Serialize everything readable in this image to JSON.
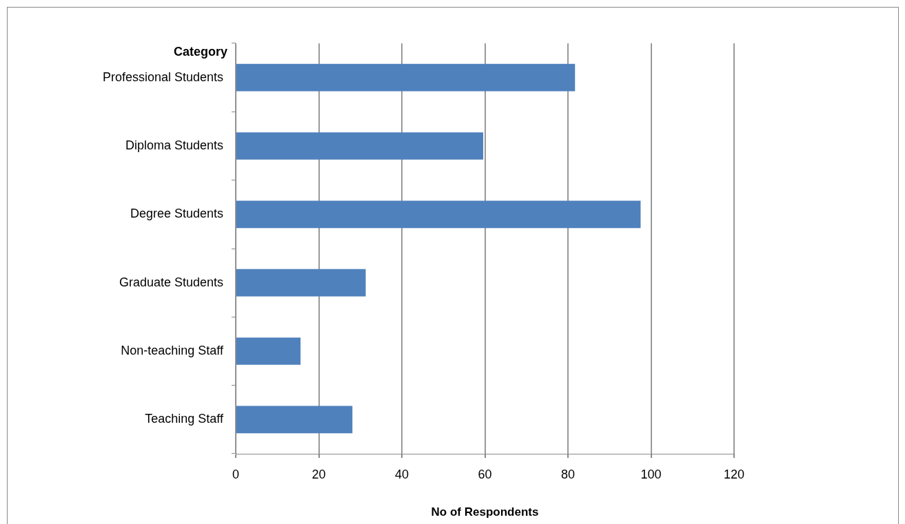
{
  "chart_data": {
    "type": "bar",
    "orientation": "horizontal",
    "ylabel": "Category",
    "xlabel": "No of Respondents",
    "categories": [
      "Professional Students",
      "Diploma Students",
      "Degree Students",
      "Graduate Students",
      "Non-teaching Staff",
      "Teaching Staff"
    ],
    "values": [
      81.7,
      59.6,
      97.5,
      31.3,
      15.6,
      28.1
    ],
    "color": "#4f81bd",
    "xlim": [
      0,
      120
    ],
    "xticks": [
      0,
      20,
      40,
      60,
      80,
      100,
      120
    ],
    "grid": "x",
    "legend": false
  }
}
